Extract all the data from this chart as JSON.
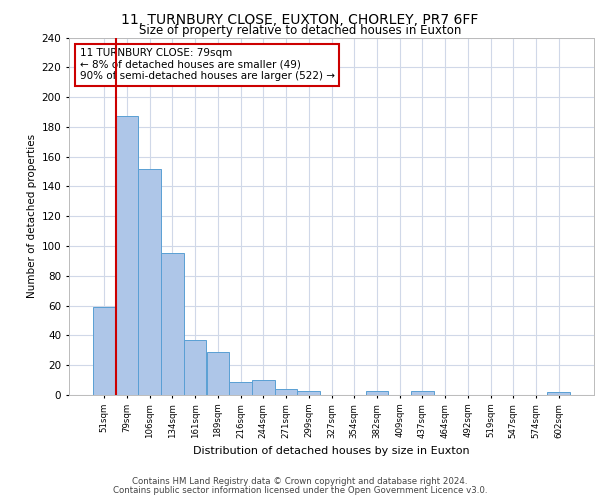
{
  "title1": "11, TURNBURY CLOSE, EUXTON, CHORLEY, PR7 6FF",
  "title2": "Size of property relative to detached houses in Euxton",
  "xlabel": "Distribution of detached houses by size in Euxton",
  "ylabel": "Number of detached properties",
  "categories": [
    "51sqm",
    "79sqm",
    "106sqm",
    "134sqm",
    "161sqm",
    "189sqm",
    "216sqm",
    "244sqm",
    "271sqm",
    "299sqm",
    "327sqm",
    "354sqm",
    "382sqm",
    "409sqm",
    "437sqm",
    "464sqm",
    "492sqm",
    "519sqm",
    "547sqm",
    "574sqm",
    "602sqm"
  ],
  "values": [
    59,
    187,
    152,
    95,
    37,
    29,
    9,
    10,
    4,
    3,
    0,
    0,
    3,
    0,
    3,
    0,
    0,
    0,
    0,
    0,
    2
  ],
  "bar_color": "#aec6e8",
  "bar_edge_color": "#5a9fd4",
  "highlight_line_color": "#cc0000",
  "annotation_line1": "11 TURNBURY CLOSE: 79sqm",
  "annotation_line2": "← 8% of detached houses are smaller (49)",
  "annotation_line3": "90% of semi-detached houses are larger (522) →",
  "annotation_box_color": "#cc0000",
  "ylim": [
    0,
    240
  ],
  "yticks": [
    0,
    20,
    40,
    60,
    80,
    100,
    120,
    140,
    160,
    180,
    200,
    220,
    240
  ],
  "background_color": "#ffffff",
  "grid_color": "#d0d8e8",
  "footer1": "Contains HM Land Registry data © Crown copyright and database right 2024.",
  "footer2": "Contains public sector information licensed under the Open Government Licence v3.0."
}
